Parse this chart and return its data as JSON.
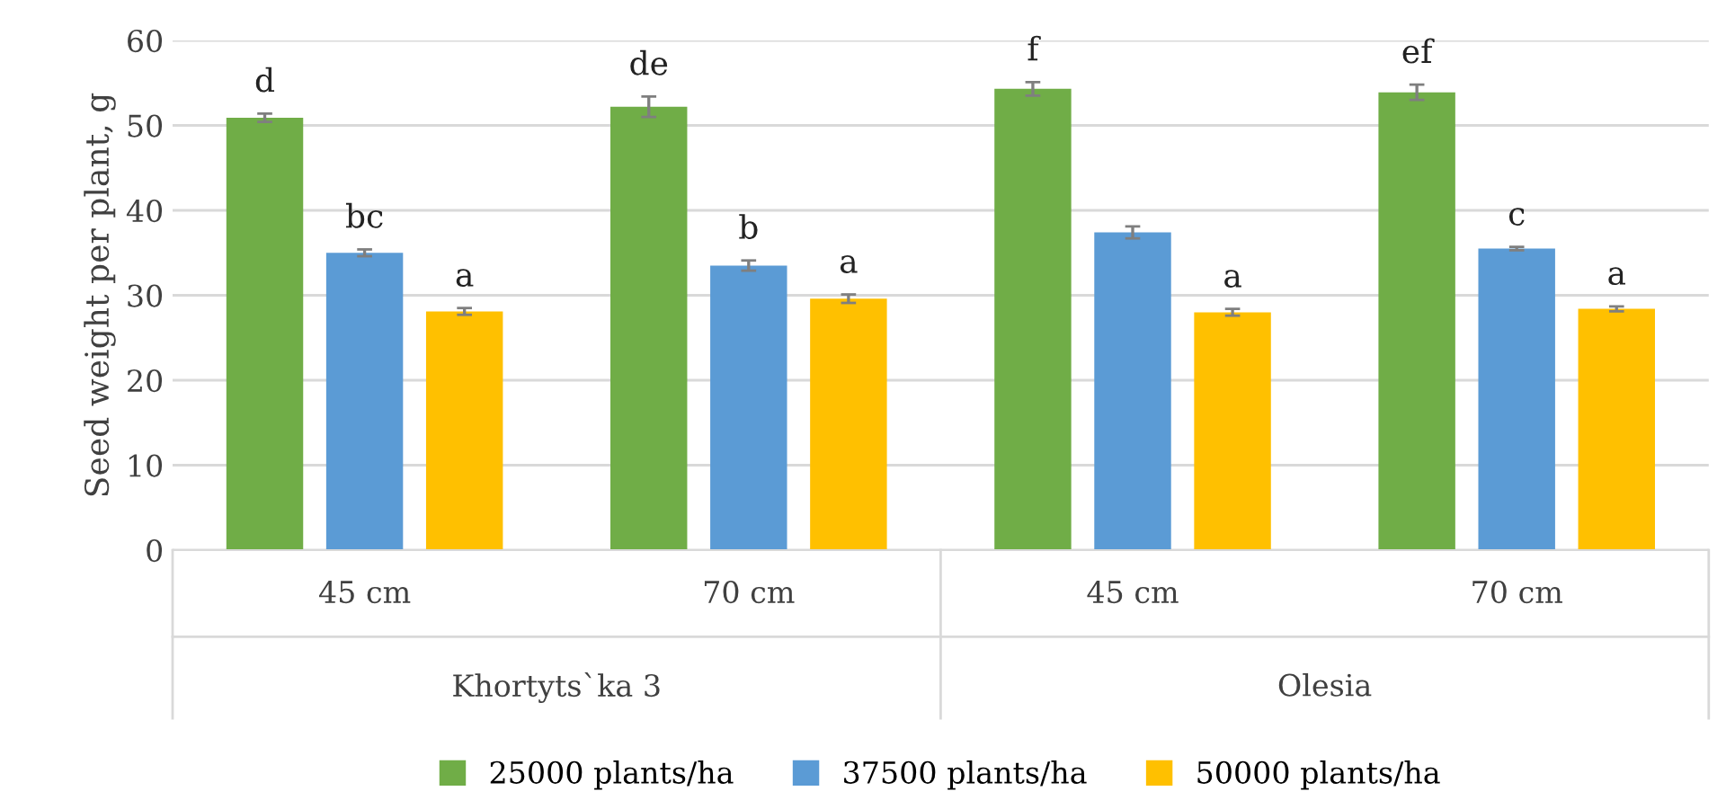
{
  "chart_data": {
    "type": "bar",
    "ylabel": "Seed weight per plant, g",
    "categories": [
      "45 cm",
      "70 cm",
      "45 cm",
      "70 cm"
    ],
    "annotations": [
      "Khortyts`ka 3",
      "Olesia"
    ],
    "series": [
      {
        "name": "25000 plants/ha",
        "color": "#70ad47",
        "values": [
          50.9,
          52.2,
          54.3,
          53.9
        ],
        "errors": [
          0.5,
          1.2,
          0.8,
          0.9
        ],
        "value_labels": [
          "d",
          "de",
          "f",
          "ef"
        ]
      },
      {
        "name": "37500 plants/ha",
        "color": "#5b9bd5",
        "values": [
          35.0,
          33.5,
          37.4,
          35.5
        ],
        "errors": [
          0.4,
          0.6,
          0.7,
          0.2
        ],
        "value_labels": [
          "bc",
          "b",
          null,
          "c"
        ]
      },
      {
        "name": "50000 plants/ha",
        "color": "#ffc000",
        "values": [
          28.1,
          29.6,
          28.0,
          28.4
        ],
        "errors": [
          0.4,
          0.5,
          0.4,
          0.3
        ],
        "value_labels": [
          "a",
          "a",
          "a",
          "a"
        ]
      }
    ],
    "ylim": [
      0,
      60
    ],
    "yticks": [
      0,
      10,
      20,
      30,
      40,
      50,
      60
    ],
    "grid": "y",
    "legend": "bottom"
  }
}
